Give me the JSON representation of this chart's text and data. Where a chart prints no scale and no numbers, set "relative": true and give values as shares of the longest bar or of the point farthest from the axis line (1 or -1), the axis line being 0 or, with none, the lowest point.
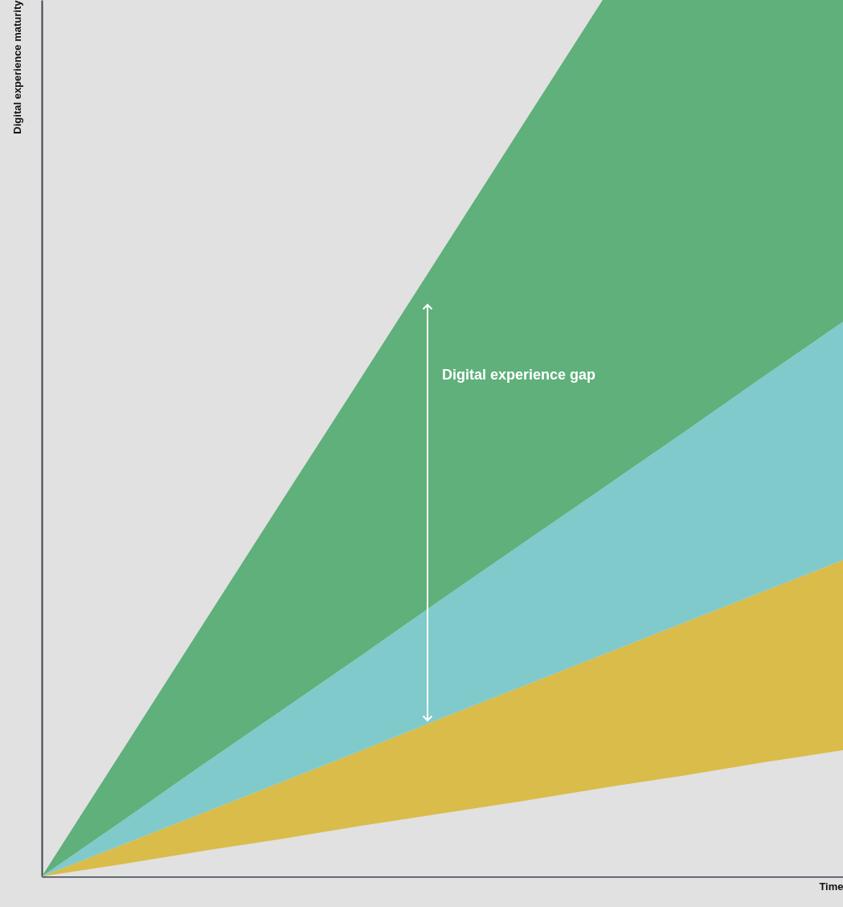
{
  "chart_data": {
    "type": "area",
    "relative": true,
    "stacked": true,
    "xlabel": "Time",
    "ylabel": "Digital experience maturity",
    "categories": [
      null,
      null,
      null,
      null,
      null,
      null,
      null,
      null,
      null,
      null,
      null
    ],
    "series": [
      {
        "color": "#e1e1e1",
        "values": [
          0,
          0.014,
          0.029,
          0.043,
          0.058,
          0.072,
          0.086,
          0.101,
          0.115,
          0.13,
          0.144
        ]
      },
      {
        "color": "#d9bc4a",
        "values": [
          0,
          0.022,
          0.043,
          0.065,
          0.086,
          0.109,
          0.131,
          0.152,
          0.174,
          0.195,
          0.217
        ]
      },
      {
        "color": "#80cacc",
        "values": [
          0,
          0.027,
          0.055,
          0.082,
          0.109,
          0.136,
          0.163,
          0.19,
          0.217,
          0.245,
          0.272
        ]
      },
      {
        "color": "#5fb07a",
        "values": [
          0,
          0.08,
          0.159,
          0.239,
          0.318,
          0.397,
          0.477,
          0.557,
          0.494,
          0.43,
          0.367
        ]
      }
    ],
    "annotations": [
      "Digital experience gap"
    ]
  }
}
